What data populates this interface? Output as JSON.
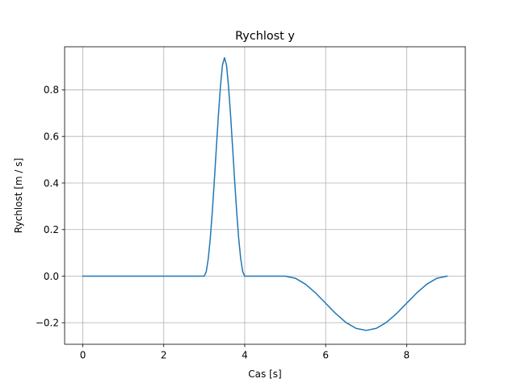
{
  "chart_data": {
    "type": "line",
    "title": "Rychlost y",
    "xlabel": "Cas [s]",
    "ylabel": "Rychlost [m / s]",
    "xlim": [
      -0.45,
      9.45
    ],
    "ylim": [
      -0.2925,
      0.985
    ],
    "grid": true,
    "x_ticks": [
      0,
      2,
      4,
      6,
      8
    ],
    "x_tick_labels": [
      "0",
      "2",
      "4",
      "6",
      "8"
    ],
    "y_ticks": [
      -0.2,
      0.0,
      0.2,
      0.4,
      0.6,
      0.8
    ],
    "y_tick_labels": [
      "−0.2",
      "0.0",
      "0.2",
      "0.4",
      "0.6",
      "0.8"
    ],
    "series": [
      {
        "color": "#1f77b4",
        "x": [
          0,
          0.5,
          1,
          1.5,
          2,
          2.5,
          3.0,
          3.05,
          3.1,
          3.15,
          3.2,
          3.25,
          3.3,
          3.35,
          3.4,
          3.45,
          3.5,
          3.55,
          3.6,
          3.65,
          3.7,
          3.75,
          3.8,
          3.85,
          3.9,
          3.95,
          4.0,
          4.25,
          4.5,
          4.75,
          5.0,
          5.25,
          5.5,
          5.75,
          6.0,
          6.25,
          6.5,
          6.75,
          7.0,
          7.25,
          7.5,
          7.75,
          8.0,
          8.25,
          8.5,
          8.75,
          9.0
        ],
        "y": [
          0,
          0,
          0,
          0,
          0,
          0,
          0,
          0.021,
          0.081,
          0.175,
          0.298,
          0.44,
          0.591,
          0.738,
          0.868,
          0.966,
          1.0,
          0.966,
          0.868,
          0.738,
          0.591,
          0.44,
          0.298,
          0.175,
          0.081,
          0.021,
          0,
          0,
          0,
          0,
          0,
          -0.0089,
          -0.0343,
          -0.0721,
          -0.1165,
          -0.1609,
          -0.1988,
          -0.2241,
          -0.233,
          -0.2241,
          -0.1988,
          -0.1609,
          -0.1165,
          -0.0721,
          -0.0343,
          -0.0089,
          0
        ]
      }
    ]
  }
}
